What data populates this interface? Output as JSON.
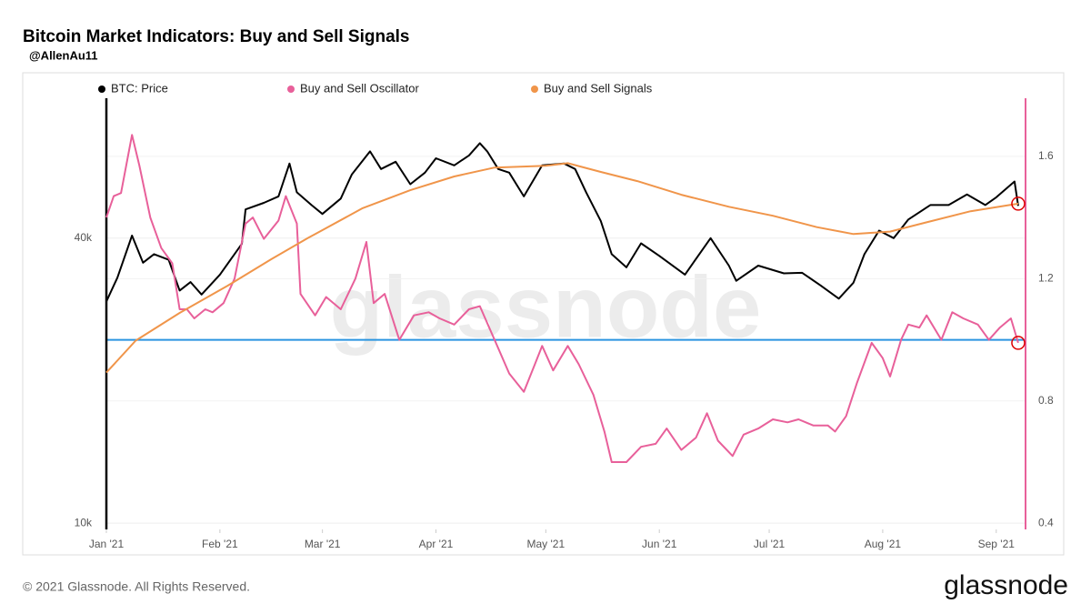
{
  "chart_data": {
    "type": "line",
    "title": "Bitcoin Market Indicators: Buy and Sell Signals",
    "subtitle": "@AllenAu11",
    "watermark": "glassnode",
    "footer": "© 2021 Glassnode. All Rights Reserved.",
    "logo": "glassnode",
    "xlim": [
      0,
      251
    ],
    "xticks": [
      {
        "value": 0,
        "label": "Jan '21"
      },
      {
        "value": 31,
        "label": "Feb '21"
      },
      {
        "value": 59,
        "label": "Mar '21"
      },
      {
        "value": 90,
        "label": "Apr '21"
      },
      {
        "value": 120,
        "label": "May '21"
      },
      {
        "value": 151,
        "label": "Jun '21"
      },
      {
        "value": 181,
        "label": "Jul '21"
      },
      {
        "value": 212,
        "label": "Aug '21"
      },
      {
        "value": 243,
        "label": "Sep '21"
      }
    ],
    "ylim": [
      9700,
      79000
    ],
    "log_y": true,
    "yticks": [
      {
        "value": 10000,
        "label": "10k"
      },
      {
        "value": 40000,
        "label": "40k"
      }
    ],
    "y2lim": [
      0.38,
      1.79
    ],
    "y2ticks": [
      0.4,
      0.8,
      1.2,
      1.6
    ],
    "grid": true,
    "reference_line": {
      "value": 1,
      "axis": "y2",
      "color": "#2a95e0"
    },
    "series": [
      {
        "name": "BTC: Price",
        "color": "#000000",
        "axis": "y",
        "x": [
          0,
          3,
          7,
          10,
          13,
          17,
          20,
          23,
          26,
          31,
          37,
          38,
          43,
          47,
          50,
          52,
          56,
          59,
          64,
          67,
          72,
          75,
          79,
          83,
          87,
          90,
          95,
          99,
          102,
          104,
          107,
          110,
          114,
          119,
          125,
          128,
          131,
          135,
          138,
          142,
          146,
          151,
          158,
          165,
          170,
          172,
          178,
          185,
          190,
          195,
          200,
          204,
          207,
          211,
          215,
          219,
          225,
          230,
          235,
          240,
          243,
          248,
          249
        ],
        "values": [
          29400,
          33000,
          40500,
          35500,
          37000,
          36000,
          31000,
          32300,
          30400,
          33500,
          38900,
          46000,
          47500,
          49000,
          57500,
          50000,
          47000,
          45000,
          48500,
          54500,
          61000,
          56000,
          58000,
          52000,
          55000,
          59000,
          57000,
          59800,
          63500,
          61000,
          56000,
          55000,
          49000,
          57000,
          57500,
          56000,
          50000,
          43500,
          37000,
          34700,
          39000,
          36700,
          33500,
          40000,
          35000,
          32500,
          35000,
          33700,
          33800,
          31800,
          29800,
          32200,
          37000,
          41500,
          40000,
          43800,
          47000,
          47000,
          49500,
          47000,
          48800,
          52700,
          46800
        ]
      },
      {
        "name": "Buy and Sell Oscillator",
        "color": "#e8609a",
        "axis": "y2",
        "x": [
          0,
          2,
          4,
          7,
          9,
          12,
          15,
          18,
          20,
          22,
          24,
          27,
          29,
          32,
          35,
          38,
          40,
          43,
          47,
          49,
          52,
          53,
          57,
          60,
          64,
          68,
          71,
          73,
          76,
          80,
          84,
          88,
          91,
          95,
          99,
          102,
          106,
          110,
          114,
          117,
          119,
          122,
          126,
          129,
          133,
          136,
          138,
          142,
          146,
          150,
          153,
          157,
          161,
          164,
          167,
          171,
          174,
          178,
          182,
          186,
          189,
          193,
          197,
          199,
          202,
          205,
          209,
          212,
          214,
          217,
          219,
          222,
          224,
          228,
          231,
          234,
          238,
          241,
          244,
          247,
          249
        ],
        "values": [
          1.4,
          1.47,
          1.48,
          1.67,
          1.57,
          1.4,
          1.3,
          1.25,
          1.1,
          1.1,
          1.07,
          1.1,
          1.09,
          1.12,
          1.2,
          1.38,
          1.4,
          1.33,
          1.39,
          1.47,
          1.38,
          1.15,
          1.08,
          1.14,
          1.1,
          1.2,
          1.32,
          1.12,
          1.15,
          1.0,
          1.08,
          1.09,
          1.07,
          1.05,
          1.1,
          1.11,
          1.0,
          0.89,
          0.83,
          0.92,
          0.98,
          0.9,
          0.98,
          0.92,
          0.82,
          0.7,
          0.6,
          0.6,
          0.65,
          0.66,
          0.71,
          0.64,
          0.68,
          0.76,
          0.67,
          0.62,
          0.69,
          0.71,
          0.74,
          0.73,
          0.74,
          0.72,
          0.72,
          0.7,
          0.75,
          0.86,
          0.99,
          0.94,
          0.88,
          1.0,
          1.05,
          1.04,
          1.08,
          1.0,
          1.09,
          1.07,
          1.05,
          1.0,
          1.04,
          1.07,
          0.99
        ]
      },
      {
        "name": "Buy and Sell Signals",
        "color": "#f0954a",
        "axis": "y",
        "x": [
          0,
          8,
          20,
          33,
          45,
          55,
          70,
          83,
          95,
          106,
          120,
          126,
          135,
          145,
          157,
          170,
          182,
          194,
          204,
          214,
          224,
          236,
          249
        ],
        "values": [
          20800,
          24300,
          27800,
          31700,
          36100,
          40000,
          46300,
          50500,
          54000,
          56400,
          56900,
          57600,
          55200,
          52800,
          49400,
          46600,
          44600,
          42200,
          40800,
          41300,
          43200,
          45600,
          47300
        ]
      }
    ]
  }
}
